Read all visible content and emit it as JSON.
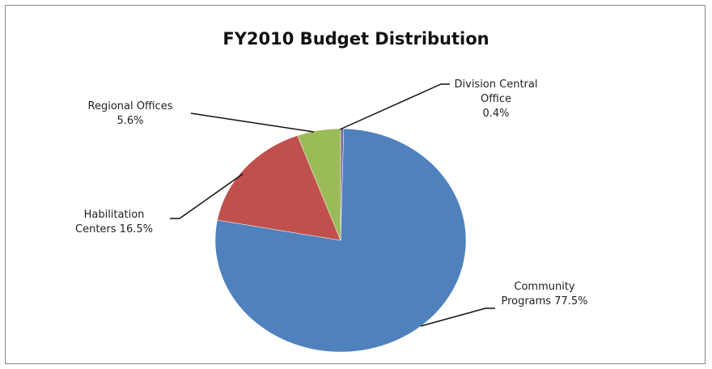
{
  "chart_data": {
    "type": "pie",
    "title": "FY2010 Budget Distribution",
    "categories": [
      "Division Central Office",
      "Community Programs",
      "Habilitation Centers",
      "Regional Offices"
    ],
    "values": [
      0.4,
      77.5,
      16.5,
      5.6
    ],
    "value_labels": [
      "0.4%",
      "77.5%",
      "16.5%",
      "5.6%"
    ],
    "colors": [
      "#8064a2",
      "#4f81bd",
      "#c0504d",
      "#9bbb59"
    ]
  }
}
